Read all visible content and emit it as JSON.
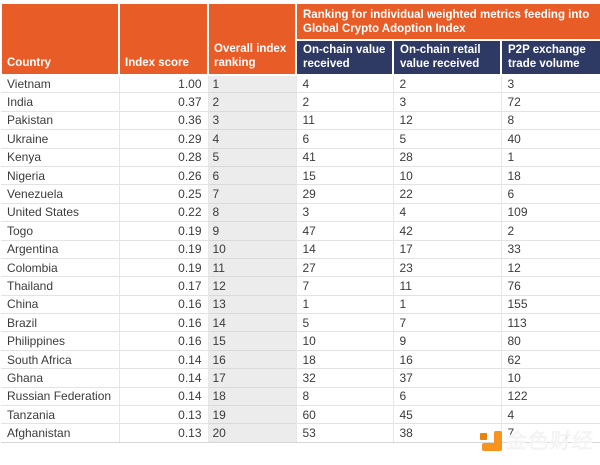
{
  "colors": {
    "header_orange": "#E75C27",
    "header_navy": "#2F3A64",
    "rank_column_bg": "#ECECEC",
    "body_text": "#3B3B3B",
    "watermark_orange": "#F7941D",
    "watermark_orange_dark": "#E8830C"
  },
  "chart_data": {
    "type": "table",
    "group_header": "Ranking for individual weighted metrics feeding into Global Crypto Adoption Index",
    "columns": [
      "Country",
      "Index score",
      "Overall index ranking",
      "On-chain value received",
      "On-chain retail value received",
      "P2P exchange trade volume"
    ],
    "rows": [
      [
        "Vietnam",
        "1.00",
        "1",
        "4",
        "2",
        "3"
      ],
      [
        "India",
        "0.37",
        "2",
        "2",
        "3",
        "72"
      ],
      [
        "Pakistan",
        "0.36",
        "3",
        "11",
        "12",
        "8"
      ],
      [
        "Ukraine",
        "0.29",
        "4",
        "6",
        "5",
        "40"
      ],
      [
        "Kenya",
        "0.28",
        "5",
        "41",
        "28",
        "1"
      ],
      [
        "Nigeria",
        "0.26",
        "6",
        "15",
        "10",
        "18"
      ],
      [
        "Venezuela",
        "0.25",
        "7",
        "29",
        "22",
        "6"
      ],
      [
        "United States",
        "0.22",
        "8",
        "3",
        "4",
        "109"
      ],
      [
        "Togo",
        "0.19",
        "9",
        "47",
        "42",
        "2"
      ],
      [
        "Argentina",
        "0.19",
        "10",
        "14",
        "17",
        "33"
      ],
      [
        "Colombia",
        "0.19",
        "11",
        "27",
        "23",
        "12"
      ],
      [
        "Thailand",
        "0.17",
        "12",
        "7",
        "11",
        "76"
      ],
      [
        "China",
        "0.16",
        "13",
        "1",
        "1",
        "155"
      ],
      [
        "Brazil",
        "0.16",
        "14",
        "5",
        "7",
        "113"
      ],
      [
        "Philippines",
        "0.16",
        "15",
        "10",
        "9",
        "80"
      ],
      [
        "South Africa",
        "0.14",
        "16",
        "18",
        "16",
        "62"
      ],
      [
        "Ghana",
        "0.14",
        "17",
        "32",
        "37",
        "10"
      ],
      [
        "Russian Federation",
        "0.14",
        "18",
        "8",
        "6",
        "122"
      ],
      [
        "Tanzania",
        "0.13",
        "19",
        "60",
        "45",
        "4"
      ],
      [
        "Afghanistan",
        "0.13",
        "20",
        "53",
        "38",
        "7"
      ]
    ]
  },
  "watermark": {
    "text": "金色财经",
    "logo": "jinse-finance-logo"
  }
}
